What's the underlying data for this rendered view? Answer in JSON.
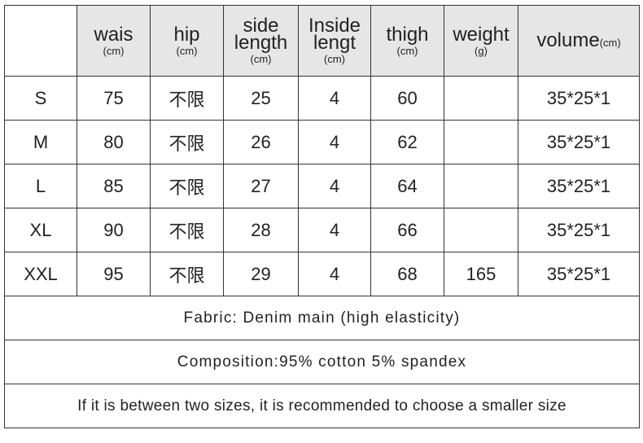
{
  "header": {
    "columns": [
      {
        "label": "wais",
        "unit": "(cm)"
      },
      {
        "label": "hip",
        "unit": "(cm)"
      },
      {
        "label": "side",
        "label2": "length",
        "unit": "(cm)"
      },
      {
        "label": "Inside",
        "label2": "lengt",
        "unit": "(cm)"
      },
      {
        "label": "thigh",
        "unit": "(cm)"
      },
      {
        "label": "weight",
        "unit": "(g)"
      },
      {
        "label": "volume",
        "unit": "(cm)"
      }
    ]
  },
  "rows": [
    {
      "size": "S",
      "waist": "75",
      "hip": "不限",
      "side": "25",
      "inside": "4",
      "thigh": "60",
      "weight": "",
      "volume": "35*25*1"
    },
    {
      "size": "M",
      "waist": "80",
      "hip": "不限",
      "side": "26",
      "inside": "4",
      "thigh": "62",
      "weight": "",
      "volume": "35*25*1"
    },
    {
      "size": "L",
      "waist": "85",
      "hip": "不限",
      "side": "27",
      "inside": "4",
      "thigh": "64",
      "weight": "",
      "volume": "35*25*1"
    },
    {
      "size": "XL",
      "waist": "90",
      "hip": "不限",
      "side": "28",
      "inside": "4",
      "thigh": "66",
      "weight": "",
      "volume": "35*25*1"
    },
    {
      "size": "XXL",
      "waist": "95",
      "hip": "不限",
      "side": "29",
      "inside": "4",
      "thigh": "68",
      "weight": "165",
      "volume": "35*25*1"
    }
  ],
  "notes": {
    "fabric": "Fabric: Denim main (high elasticity)",
    "composition": "Composition:95% cotton 5% spandex",
    "advice": "If it is between two sizes, it is recommended to choose a smaller size"
  }
}
